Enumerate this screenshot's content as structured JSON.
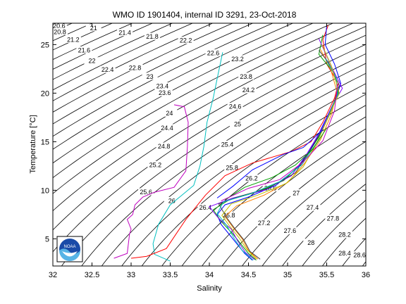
{
  "chart_data": {
    "type": "line",
    "title": "WMO ID 1901404, internal ID 3291, 23-Oct-2018",
    "xlabel": "Salinity",
    "ylabel": "Temperature [°C]",
    "xlim": [
      32,
      36
    ],
    "ylim": [
      2.2,
      27.2
    ],
    "xticks": [
      32,
      32.5,
      33,
      33.5,
      34,
      34.5,
      35,
      35.5,
      36
    ],
    "xtick_labels": [
      "32",
      "32.5",
      "33",
      "33.5",
      "34",
      "34.5",
      "35",
      "35.5",
      "36"
    ],
    "yticks": [
      5,
      10,
      15,
      20,
      25
    ],
    "ytick_labels": [
      "5",
      "10",
      "15",
      "20",
      "25"
    ],
    "grid": false,
    "logo_text": "NOAA",
    "density_labels": [
      {
        "text": "20.6",
        "s": 32.08,
        "t": 26.8
      },
      {
        "text": "20.8",
        "s": 32.09,
        "t": 26.2
      },
      {
        "text": "21",
        "s": 32.52,
        "t": 26.6
      },
      {
        "text": "21.2",
        "s": 32.26,
        "t": 25.4
      },
      {
        "text": "21.4",
        "s": 32.92,
        "t": 26.1
      },
      {
        "text": "21.6",
        "s": 32.4,
        "t": 24.3
      },
      {
        "text": "21.8",
        "s": 33.27,
        "t": 25.7
      },
      {
        "text": "22",
        "s": 32.5,
        "t": 23.2
      },
      {
        "text": "22.2",
        "s": 33.7,
        "t": 25.3
      },
      {
        "text": "22.4",
        "s": 32.7,
        "t": 22.3
      },
      {
        "text": "22.6",
        "s": 34.05,
        "t": 24.0
      },
      {
        "text": "22.8",
        "s": 33.05,
        "t": 22.5
      },
      {
        "text": "23",
        "s": 33.24,
        "t": 21.6
      },
      {
        "text": "23.2",
        "s": 34.36,
        "t": 23.4
      },
      {
        "text": "23.4",
        "s": 33.4,
        "t": 20.6
      },
      {
        "text": "23.6",
        "s": 33.43,
        "t": 19.9
      },
      {
        "text": "23.8",
        "s": 34.47,
        "t": 21.6
      },
      {
        "text": "24",
        "s": 33.49,
        "t": 17.8
      },
      {
        "text": "24.2",
        "s": 34.5,
        "t": 20.2
      },
      {
        "text": "24.4",
        "s": 33.46,
        "t": 16.3
      },
      {
        "text": "24.6",
        "s": 34.33,
        "t": 18.5
      },
      {
        "text": "24.8",
        "s": 33.42,
        "t": 14.4
      },
      {
        "text": "25",
        "s": 34.36,
        "t": 16.7
      },
      {
        "text": "25.2",
        "s": 33.31,
        "t": 12.5
      },
      {
        "text": "25.4",
        "s": 34.23,
        "t": 14.6
      },
      {
        "text": "25.6",
        "s": 33.19,
        "t": 9.7
      },
      {
        "text": "25.8",
        "s": 34.29,
        "t": 12.2
      },
      {
        "text": "26",
        "s": 33.52,
        "t": 8.8
      },
      {
        "text": "26.2",
        "s": 34.54,
        "t": 11.1
      },
      {
        "text": "26.4",
        "s": 33.95,
        "t": 8.1
      },
      {
        "text": "26.6",
        "s": 34.78,
        "t": 10.1
      },
      {
        "text": "26.8",
        "s": 34.25,
        "t": 7.3
      },
      {
        "text": "27",
        "s": 35.11,
        "t": 9.6
      },
      {
        "text": "27.2",
        "s": 34.7,
        "t": 6.5
      },
      {
        "text": "27.4",
        "s": 35.32,
        "t": 8.1
      },
      {
        "text": "27.6",
        "s": 35.03,
        "t": 5.7
      },
      {
        "text": "27.8",
        "s": 35.58,
        "t": 7.0
      },
      {
        "text": "28",
        "s": 35.3,
        "t": 4.5
      },
      {
        "text": "28.2",
        "s": 35.73,
        "t": 5.3
      },
      {
        "text": "28.4",
        "s": 35.73,
        "t": 3.4
      },
      {
        "text": "28.6",
        "s": 35.92,
        "t": 3.2
      }
    ],
    "profile_colors": [
      "#0000ff",
      "#00a000",
      "#ff0000",
      "#00bfbf",
      "#bf00bf",
      "#bfbf00",
      "#404040",
      "#ff8000",
      "#8000ff",
      "#008080"
    ],
    "series": [
      {
        "color": "#bf00bf",
        "points": [
          [
            32.78,
            3.0
          ],
          [
            32.95,
            3.5
          ],
          [
            32.98,
            5.5
          ],
          [
            33.0,
            6.0
          ],
          [
            32.95,
            7.0
          ],
          [
            33.02,
            7.5
          ],
          [
            33.05,
            8.5
          ],
          [
            33.15,
            9.3
          ],
          [
            33.3,
            9.8
          ],
          [
            33.55,
            10.3
          ],
          [
            33.7,
            12.0
          ],
          [
            33.72,
            14.5
          ],
          [
            33.73,
            17.0
          ],
          [
            33.68,
            18.6
          ],
          [
            33.55,
            18.8
          ]
        ]
      },
      {
        "color": "#00bfbf",
        "points": [
          [
            33.5,
            2.7
          ],
          [
            33.3,
            3.4
          ],
          [
            33.28,
            4.5
          ],
          [
            33.35,
            6.5
          ],
          [
            33.5,
            8.5
          ],
          [
            33.8,
            10.5
          ],
          [
            33.88,
            12.5
          ],
          [
            33.93,
            14.5
          ],
          [
            33.97,
            17.0
          ],
          [
            34.05,
            19.5
          ],
          [
            34.1,
            21.5
          ],
          [
            34.17,
            24.2
          ]
        ]
      },
      {
        "color": "#ff0000",
        "points": [
          [
            33.0,
            3.0
          ],
          [
            33.2,
            3.2
          ],
          [
            33.45,
            4.0
          ],
          [
            33.6,
            5.8
          ],
          [
            33.7,
            7.0
          ],
          [
            33.95,
            9.5
          ],
          [
            34.2,
            11.5
          ],
          [
            34.55,
            12.8
          ],
          [
            35.05,
            14.0
          ],
          [
            35.3,
            15.0
          ],
          [
            35.45,
            17.0
          ],
          [
            35.6,
            19.5
          ],
          [
            35.65,
            21.0
          ],
          [
            35.5,
            23.0
          ],
          [
            35.45,
            25.5
          ],
          [
            35.52,
            27.0
          ]
        ]
      },
      {
        "color": "#0000ff",
        "points": [
          [
            34.55,
            2.8
          ],
          [
            34.45,
            3.5
          ],
          [
            34.35,
            4.5
          ],
          [
            34.25,
            5.5
          ],
          [
            34.15,
            6.5
          ],
          [
            34.1,
            7.5
          ],
          [
            34.2,
            8.5
          ],
          [
            34.5,
            9.3
          ],
          [
            34.85,
            10.5
          ],
          [
            35.15,
            12.5
          ],
          [
            35.35,
            15.0
          ],
          [
            35.5,
            17.5
          ],
          [
            35.62,
            19.5
          ],
          [
            35.68,
            21.0
          ],
          [
            35.6,
            23.0
          ],
          [
            35.48,
            25.0
          ],
          [
            35.5,
            27.0
          ]
        ]
      },
      {
        "color": "#00a000",
        "points": [
          [
            34.6,
            2.8
          ],
          [
            34.5,
            3.5
          ],
          [
            34.4,
            4.5
          ],
          [
            34.3,
            5.5
          ],
          [
            34.15,
            6.8
          ],
          [
            34.05,
            8.0
          ],
          [
            34.25,
            9.0
          ],
          [
            34.6,
            9.8
          ],
          [
            34.95,
            11.0
          ],
          [
            35.2,
            13.0
          ],
          [
            35.4,
            15.5
          ],
          [
            35.55,
            18.0
          ],
          [
            35.65,
            20.0
          ],
          [
            35.6,
            22.0
          ],
          [
            35.4,
            24.0
          ],
          [
            35.45,
            26.0
          ]
        ]
      },
      {
        "color": "#ff8000",
        "points": [
          [
            34.62,
            2.9
          ],
          [
            34.5,
            3.8
          ],
          [
            34.42,
            5.0
          ],
          [
            34.3,
            6.2
          ],
          [
            34.2,
            7.3
          ],
          [
            34.35,
            8.4
          ],
          [
            34.7,
            9.5
          ],
          [
            35.0,
            10.8
          ],
          [
            35.22,
            12.8
          ],
          [
            35.42,
            15.2
          ],
          [
            35.56,
            17.8
          ],
          [
            35.63,
            20.2
          ],
          [
            35.55,
            22.5
          ],
          [
            35.42,
            24.5
          ]
        ]
      },
      {
        "color": "#8000ff",
        "points": [
          [
            34.58,
            2.85
          ],
          [
            34.46,
            3.6
          ],
          [
            34.36,
            4.8
          ],
          [
            34.28,
            6.0
          ],
          [
            34.12,
            7.1
          ],
          [
            34.0,
            8.3
          ],
          [
            34.3,
            9.2
          ],
          [
            34.7,
            10.0
          ],
          [
            35.05,
            11.5
          ],
          [
            35.25,
            13.8
          ],
          [
            35.45,
            16.5
          ],
          [
            35.58,
            18.8
          ],
          [
            35.7,
            20.5
          ],
          [
            35.58,
            22.4
          ],
          [
            35.4,
            25.6
          ]
        ]
      },
      {
        "color": "#404040",
        "points": [
          [
            34.65,
            2.9
          ],
          [
            34.52,
            3.7
          ],
          [
            34.44,
            4.9
          ],
          [
            34.33,
            6.0
          ],
          [
            34.22,
            7.2
          ],
          [
            34.12,
            8.6
          ],
          [
            34.4,
            9.4
          ],
          [
            34.75,
            10.2
          ],
          [
            35.1,
            11.8
          ],
          [
            35.3,
            14.2
          ],
          [
            35.48,
            16.8
          ],
          [
            35.6,
            19.2
          ],
          [
            35.66,
            20.8
          ],
          [
            35.52,
            23.2
          ],
          [
            35.4,
            24.4
          ]
        ]
      },
      {
        "color": "#00bfbf",
        "points": [
          [
            34.56,
            2.8
          ],
          [
            34.42,
            3.8
          ],
          [
            34.32,
            5.0
          ],
          [
            34.22,
            6.4
          ],
          [
            34.1,
            7.6
          ],
          [
            34.18,
            8.8
          ],
          [
            34.55,
            9.7
          ],
          [
            34.9,
            10.9
          ],
          [
            35.18,
            12.6
          ],
          [
            35.38,
            15.0
          ],
          [
            35.52,
            17.6
          ],
          [
            35.64,
            19.8
          ],
          [
            35.62,
            21.6
          ],
          [
            35.48,
            23.6
          ]
        ]
      },
      {
        "color": "#bfbf00",
        "points": [
          [
            34.6,
            2.9
          ],
          [
            34.48,
            3.9
          ],
          [
            34.38,
            5.1
          ],
          [
            34.26,
            6.3
          ],
          [
            34.16,
            7.4
          ],
          [
            34.28,
            8.6
          ],
          [
            34.62,
            9.5
          ],
          [
            34.98,
            10.7
          ],
          [
            35.2,
            12.4
          ],
          [
            35.4,
            15.3
          ],
          [
            35.54,
            17.9
          ],
          [
            35.66,
            20.0
          ],
          [
            35.56,
            22.8
          ],
          [
            35.44,
            25.0
          ]
        ]
      },
      {
        "color": "#0000ff",
        "points": [
          [
            34.1,
            9.2
          ],
          [
            34.3,
            10.4
          ],
          [
            34.55,
            12.1
          ],
          [
            34.95,
            13.7
          ],
          [
            35.2,
            14.4
          ],
          [
            35.45,
            16.2
          ]
        ]
      },
      {
        "color": "#00a000",
        "points": [
          [
            34.2,
            9.0
          ],
          [
            34.45,
            10.3
          ],
          [
            34.8,
            11.3
          ],
          [
            35.1,
            12.6
          ],
          [
            35.32,
            14.2
          ],
          [
            35.5,
            16.4
          ]
        ]
      },
      {
        "color": "#bf00bf",
        "points": [
          [
            34.15,
            8.9
          ],
          [
            34.5,
            10.2
          ],
          [
            34.9,
            11.1
          ],
          [
            35.2,
            12.9
          ],
          [
            35.45,
            15.1
          ],
          [
            35.6,
            18.2
          ],
          [
            35.64,
            21.0
          ]
        ]
      }
    ]
  }
}
